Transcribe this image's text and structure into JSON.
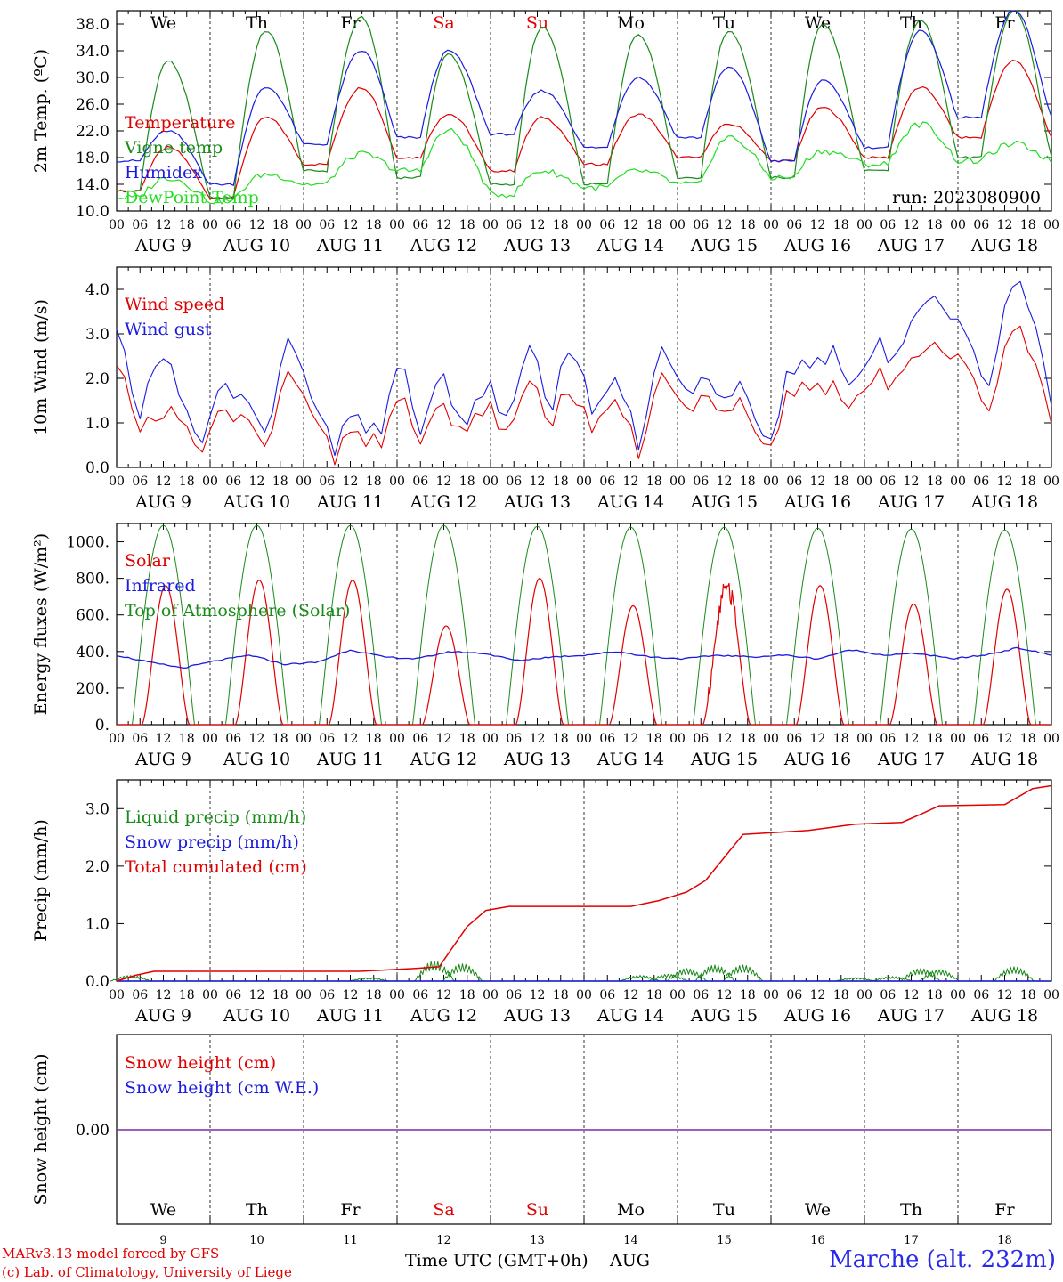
{
  "chart_data": [
    {
      "type": "line",
      "ylabel": "2m Temp. (ºC)",
      "ylim": [
        10,
        40
      ],
      "yticks": [
        "10.0",
        "14.0",
        "18.0",
        "22.0",
        "26.0",
        "30.0",
        "34.0",
        "38.0"
      ],
      "run_label": "run: 2023080900",
      "weekday_labels": [
        "We",
        "Th",
        "Fr",
        "Sa",
        "Su",
        "Mo",
        "Tu",
        "We",
        "Th",
        "Fr"
      ],
      "weekday_colors": [
        "#000000",
        "#000000",
        "#000000",
        "#e00000",
        "#e00000",
        "#000000",
        "#000000",
        "#000000",
        "#000000",
        "#000000"
      ],
      "day_labels": [
        "AUG  9",
        "AUG 10",
        "AUG 11",
        "AUG 12",
        "AUG 13",
        "AUG 14",
        "AUG 15",
        "AUG 16",
        "AUG 17",
        "AUG 18"
      ],
      "hour_ticks": [
        "00",
        "06",
        "12",
        "18"
      ],
      "legend": [
        "Temperature",
        "Vigne temp",
        "Humidex",
        "DewPoint Temp"
      ],
      "series": [
        {
          "name": "Temperature",
          "color": "#e00000",
          "mins": [
            13.0,
            12.0,
            17.0,
            18.0,
            16.0,
            17.0,
            18.0,
            17.5,
            18.0,
            21.0
          ],
          "maxs": [
            19.5,
            24.0,
            28.5,
            24.5,
            24.0,
            24.5,
            23.0,
            25.5,
            28.5,
            32.5
          ]
        },
        {
          "name": "Vigne temp",
          "color": "#1a8a1a",
          "mins": [
            13.0,
            12.0,
            16.0,
            15.0,
            14.0,
            14.0,
            15.0,
            15.0,
            16.0,
            18.0
          ],
          "maxs": [
            32.5,
            37.0,
            39.0,
            33.5,
            37.5,
            36.5,
            37.0,
            38.0,
            38.5,
            40.0
          ]
        },
        {
          "name": "Humidex",
          "color": "#1a1ae0",
          "mins": [
            17.5,
            14.0,
            20.0,
            21.0,
            21.5,
            19.5,
            21.0,
            17.5,
            19.5,
            24.0
          ],
          "maxs": [
            22.0,
            28.5,
            34.0,
            34.0,
            28.0,
            30.0,
            31.5,
            29.5,
            37.0,
            40.0
          ]
        },
        {
          "name": "DewPoint Temp",
          "color": "#22dd22",
          "mins": [
            12.0,
            11.5,
            14.0,
            16.0,
            12.5,
            13.5,
            14.0,
            15.0,
            17.0,
            17.5
          ],
          "maxs": [
            15.0,
            15.5,
            18.5,
            22.0,
            16.0,
            16.0,
            21.0,
            19.0,
            23.0,
            20.0
          ]
        }
      ]
    },
    {
      "type": "line",
      "ylabel": "10m Wind (m/s)",
      "ylim": [
        0,
        4.5
      ],
      "yticks": [
        "0.0",
        "1.0",
        "2.0",
        "3.0",
        "4.0"
      ],
      "day_labels": [
        "AUG  9",
        "AUG 10",
        "AUG 11",
        "AUG 12",
        "AUG 13",
        "AUG 14",
        "AUG 15",
        "AUG 16",
        "AUG 17",
        "AUG 18"
      ],
      "legend": [
        "Wind speed",
        "Wind gust"
      ],
      "series": [
        {
          "name": "Wind speed",
          "color": "#e00000",
          "anchors": [
            2.5,
            0.6,
            1.4,
            0.9,
            0.5,
            1.4,
            1.1,
            0.6,
            2.5,
            1.0,
            0.3,
            1.0,
            0.4,
            1.6,
            0.7,
            1.5,
            0.4,
            1.6,
            0.7,
            1.9,
            1.1,
            1.7,
            0.8,
            1.5,
            0.4,
            2.0,
            1.2,
            1.6,
            1.1,
            1.4,
            0.2,
            1.9,
            1.6,
            1.9,
            1.4,
            2.2,
            1.8,
            2.8,
            2.6,
            2.3,
            1.0,
            3.1,
            2.8,
            1.2
          ]
        },
        {
          "name": "Wind gust",
          "color": "#1a1ae0",
          "anchors": [
            3.3,
            0.8,
            2.9,
            1.3,
            0.7,
            2.0,
            1.5,
            0.9,
            3.3,
            1.3,
            0.5,
            1.4,
            0.6,
            2.4,
            0.9,
            2.2,
            0.5,
            2.1,
            1.0,
            2.7,
            1.4,
            2.8,
            1.1,
            2.0,
            0.6,
            2.6,
            1.6,
            2.0,
            1.4,
            1.8,
            0.3,
            2.4,
            2.1,
            2.7,
            1.8,
            2.9,
            2.3,
            3.9,
            3.6,
            3.0,
            1.5,
            4.1,
            3.8,
            1.6
          ]
        }
      ]
    },
    {
      "type": "line",
      "ylabel": "Energy fluxes (W/m²)",
      "ylim": [
        0,
        1100
      ],
      "yticks": [
        "0.",
        "200.",
        "400.",
        "600.",
        "800.",
        "1000."
      ],
      "day_labels": [
        "AUG  9",
        "AUG 10",
        "AUG 11",
        "AUG 12",
        "AUG 13",
        "AUG 14",
        "AUG 15",
        "AUG 16",
        "AUG 17",
        "AUG 18"
      ],
      "legend": [
        "Solar",
        "Infrared",
        "Top of Atmosphere (Solar)"
      ],
      "series": [
        {
          "name": "Solar",
          "color": "#e00000",
          "daily_peaks": [
            760,
            790,
            790,
            540,
            800,
            650,
            760,
            760,
            660,
            740
          ]
        },
        {
          "name": "Infrared",
          "color": "#1a1ae0",
          "anchors": [
            380,
            340,
            310,
            350,
            380,
            330,
            340,
            410,
            370,
            360,
            400,
            390,
            350,
            370,
            380,
            400,
            370,
            360,
            380,
            370,
            380,
            360,
            410,
            380,
            390,
            360,
            380,
            420,
            380
          ]
        },
        {
          "name": "Top of Atmosphere (Solar)",
          "color": "#1a8a1a",
          "daily_peaks": [
            1090,
            1090,
            1090,
            1090,
            1085,
            1080,
            1080,
            1075,
            1070,
            1065
          ]
        }
      ]
    },
    {
      "type": "line",
      "ylabel": "Precip (mm/h)",
      "ylim": [
        0,
        3.5
      ],
      "yticks": [
        "0.0",
        "1.0",
        "2.0",
        "3.0"
      ],
      "day_labels": [
        "AUG  9",
        "AUG 10",
        "AUG 11",
        "AUG 12",
        "AUG 13",
        "AUG 14",
        "AUG 15",
        "AUG 16",
        "AUG 17",
        "AUG 18"
      ],
      "legend": [
        "Liquid precip (mm/h)",
        "Snow precip (mm/h)",
        "Total cumulated (cm)"
      ],
      "series": [
        {
          "name": "Liquid precip (mm/h)",
          "color": "#1a8a1a",
          "events": [
            [
              0.15,
              0.1
            ],
            [
              2.7,
              0.06
            ],
            [
              3.4,
              0.35
            ],
            [
              3.7,
              0.3
            ],
            [
              5.6,
              0.1
            ],
            [
              5.9,
              0.12
            ],
            [
              6.1,
              0.22
            ],
            [
              6.4,
              0.28
            ],
            [
              6.7,
              0.28
            ],
            [
              7.9,
              0.06
            ],
            [
              8.3,
              0.08
            ],
            [
              8.6,
              0.22
            ],
            [
              8.8,
              0.2
            ],
            [
              9.6,
              0.25
            ]
          ]
        },
        {
          "name": "Snow precip (mm/h)",
          "color": "#1a1ae0",
          "value": 0
        },
        {
          "name": "Total cumulated (cm)",
          "color": "#e00000",
          "points": [
            [
              0,
              0
            ],
            [
              0.2,
              0.1
            ],
            [
              0.4,
              0.17
            ],
            [
              2.6,
              0.17
            ],
            [
              3.2,
              0.22
            ],
            [
              3.45,
              0.25
            ],
            [
              3.75,
              0.95
            ],
            [
              3.95,
              1.23
            ],
            [
              4.2,
              1.3
            ],
            [
              5.5,
              1.3
            ],
            [
              5.8,
              1.4
            ],
            [
              6.1,
              1.55
            ],
            [
              6.3,
              1.75
            ],
            [
              6.7,
              2.55
            ],
            [
              7.4,
              2.62
            ],
            [
              7.9,
              2.73
            ],
            [
              8.4,
              2.76
            ],
            [
              8.6,
              2.9
            ],
            [
              8.8,
              3.05
            ],
            [
              9.5,
              3.07
            ],
            [
              9.8,
              3.35
            ],
            [
              10,
              3.4
            ]
          ]
        }
      ]
    },
    {
      "type": "line",
      "ylabel": "Snow height (cm)",
      "yticks": [
        "0.00"
      ],
      "legend": [
        "Snow height (cm)",
        "Snow height (cm W.E.)"
      ],
      "weekday_labels": [
        "We",
        "Th",
        "Fr",
        "Sa",
        "Su",
        "Mo",
        "Tu",
        "We",
        "Th",
        "Fr"
      ],
      "weekday_colors": [
        "#000000",
        "#000000",
        "#000000",
        "#e00000",
        "#e00000",
        "#000000",
        "#000000",
        "#000000",
        "#000000",
        "#000000"
      ],
      "day_numbers": [
        "9",
        "10",
        "11",
        "12",
        "13",
        "14",
        "15",
        "16",
        "17",
        "18"
      ],
      "series": [
        {
          "name": "Snow height (cm)",
          "color": "#e00000",
          "value": 0
        },
        {
          "name": "Snow height (cm W.E.)",
          "color": "#1a1ae0",
          "value": 0
        }
      ]
    }
  ],
  "footer": {
    "credit_line1": "MARv3.13 model forced by GFS",
    "credit_line2": "(c) Lab. of Climatology, University of Liege",
    "xaxis_title": "Time UTC (GMT+0h)",
    "xaxis_month": "AUG",
    "station": "Marche (alt. 232m)"
  }
}
